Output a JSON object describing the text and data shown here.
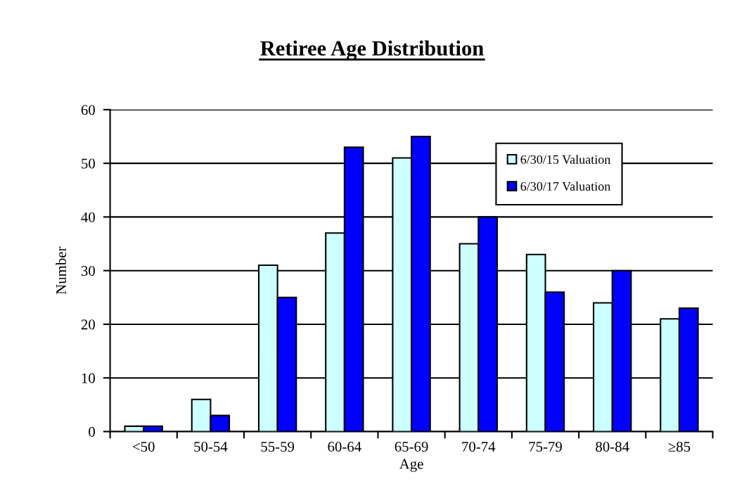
{
  "chart_data": {
    "type": "bar",
    "title": "Retiree Age Distribution",
    "xlabel": "Age",
    "ylabel": "Number",
    "categories": [
      "<50",
      "50-54",
      "55-59",
      "60-64",
      "65-69",
      "70-74",
      "75-79",
      "80-84",
      "≥85"
    ],
    "series": [
      {
        "name": "6/30/15 Valuation",
        "color": "#ccffff",
        "values": [
          1,
          6,
          31,
          37,
          51,
          35,
          33,
          24,
          21
        ]
      },
      {
        "name": "6/30/17 Valuation",
        "color": "#0000ff",
        "values": [
          1,
          3,
          25,
          53,
          55,
          40,
          26,
          30,
          23
        ]
      }
    ],
    "ylim": [
      0,
      60
    ],
    "yticks": [
      0,
      10,
      20,
      30,
      40,
      50,
      60
    ],
    "grid": "y",
    "legend": "top right"
  }
}
